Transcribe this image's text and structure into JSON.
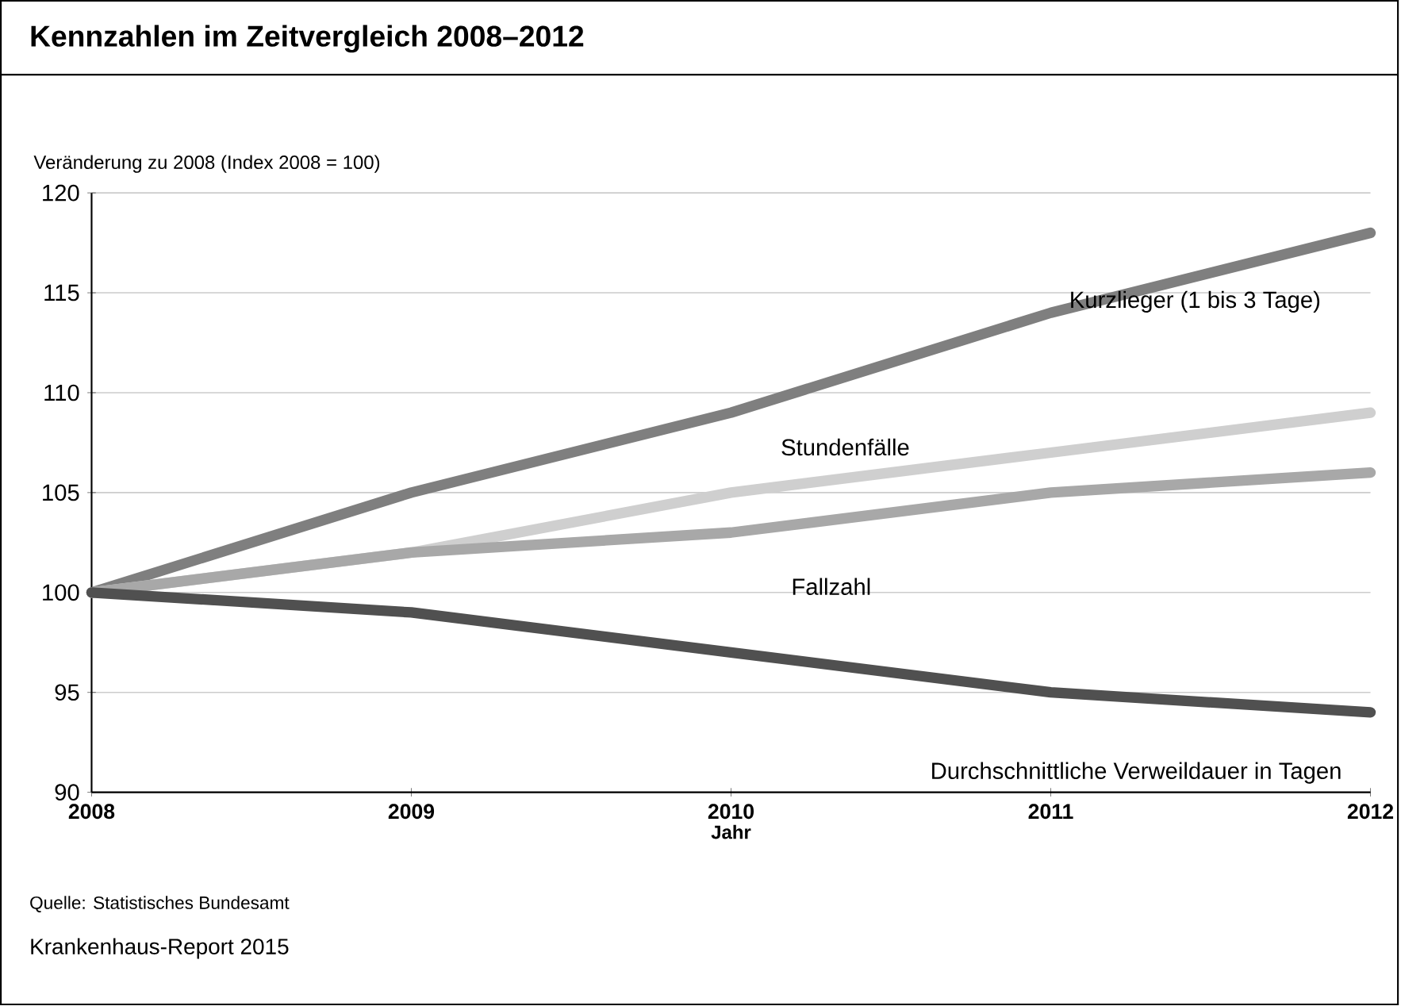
{
  "chart_data": {
    "type": "line",
    "title": "Kennzahlen im Zeitvergleich 2008–2012",
    "ylabel": "Veränderung zu 2008 (Index 2008 = 100)",
    "xlabel": "Jahr",
    "x": [
      2008,
      2009,
      2010,
      2011,
      2012
    ],
    "series": [
      {
        "name": "Kurzlieger (1 bis 3 Tage)",
        "color": "#7f7f7f",
        "values": [
          100,
          105,
          109,
          114,
          118
        ]
      },
      {
        "name": "Stundenfälle",
        "color": "#cfcfcf",
        "values": [
          100,
          102,
          105,
          107,
          109
        ]
      },
      {
        "name": "Fallzahl",
        "color": "#a8a8a8",
        "values": [
          100,
          102,
          103,
          105,
          106
        ]
      },
      {
        "name": "Durchschnittliche Verweildauer in Tagen",
        "color": "#505050",
        "values": [
          100,
          99,
          97,
          95,
          94
        ]
      }
    ],
    "xlim": [
      2008,
      2012
    ],
    "ylim": [
      90,
      120
    ],
    "xticks": [
      2008,
      2009,
      2010,
      2011,
      2012
    ],
    "yticks": [
      90,
      95,
      100,
      105,
      110,
      115,
      120
    ],
    "grid": "y",
    "marker": "none",
    "line_style": "solid",
    "annotations": [
      "Quelle: Statistisches Bundesamt",
      "Krankenhaus-Report 2015"
    ]
  }
}
